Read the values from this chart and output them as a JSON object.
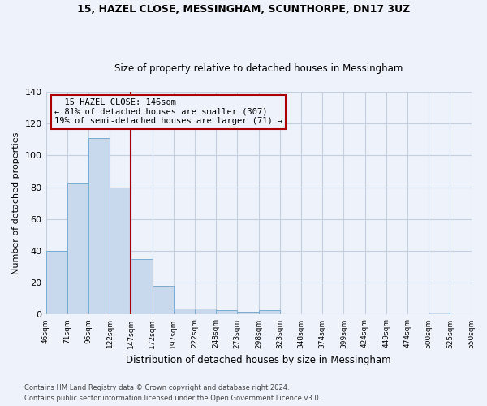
{
  "title1": "15, HAZEL CLOSE, MESSINGHAM, SCUNTHORPE, DN17 3UZ",
  "title2": "Size of property relative to detached houses in Messingham",
  "xlabel": "Distribution of detached houses by size in Messingham",
  "ylabel": "Number of detached properties",
  "footer1": "Contains HM Land Registry data © Crown copyright and database right 2024.",
  "footer2": "Contains public sector information licensed under the Open Government Licence v3.0.",
  "annotation_line1": "  15 HAZEL CLOSE: 146sqm",
  "annotation_line2": "← 81% of detached houses are smaller (307)",
  "annotation_line3": "19% of semi-detached houses are larger (71) →",
  "bar_values": [
    40,
    83,
    111,
    80,
    35,
    18,
    4,
    4,
    3,
    2,
    3,
    0,
    0,
    0,
    0,
    0,
    0,
    0,
    1,
    0
  ],
  "bar_labels": [
    "46sqm",
    "71sqm",
    "96sqm",
    "122sqm",
    "147sqm",
    "172sqm",
    "197sqm",
    "222sqm",
    "248sqm",
    "273sqm",
    "298sqm",
    "323sqm",
    "348sqm",
    "374sqm",
    "399sqm",
    "424sqm",
    "449sqm",
    "474sqm",
    "500sqm",
    "525sqm",
    "550sqm"
  ],
  "n_bars": 20,
  "bar_color": "#c8d9ee",
  "bar_edge_color": "#7aadd4",
  "red_line_index": 4,
  "annotation_box_color": "#aa0000",
  "background_color": "#edf2fb",
  "grid_color": "#c5cfe0",
  "ylim": [
    0,
    140
  ],
  "yticks": [
    0,
    20,
    40,
    60,
    80,
    100,
    120,
    140
  ]
}
